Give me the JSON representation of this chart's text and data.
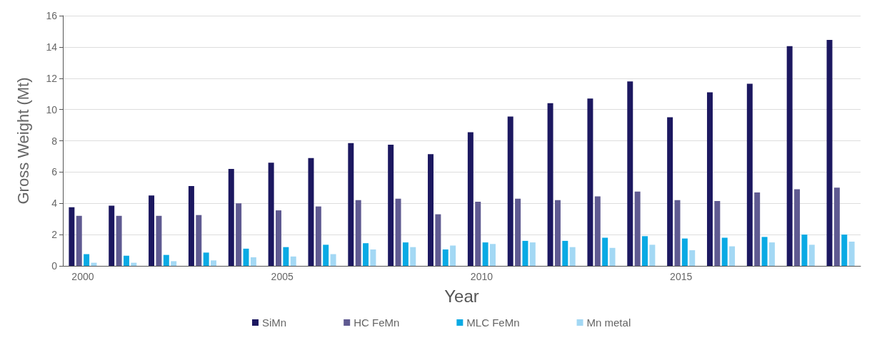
{
  "chart_data": {
    "type": "bar",
    "xlabel": "Year",
    "ylabel": "Gross Weight (Mt)",
    "categories": [
      "2000",
      null,
      null,
      null,
      null,
      "2005",
      null,
      null,
      null,
      null,
      "2010",
      null,
      null,
      null,
      null,
      "2015",
      null,
      null,
      null,
      null
    ],
    "series": [
      {
        "name": "SiMn",
        "color": "#1c1860",
        "values": [
          3.75,
          3.85,
          4.5,
          5.1,
          6.2,
          6.6,
          6.9,
          7.85,
          7.75,
          7.15,
          8.55,
          9.55,
          10.4,
          10.7,
          11.8,
          9.5,
          11.1,
          11.65,
          14.05,
          14.45
        ]
      },
      {
        "name": "HC FeMn",
        "color": "#5f5a91",
        "values": [
          3.2,
          3.2,
          3.2,
          3.25,
          4.0,
          3.55,
          3.8,
          4.2,
          4.3,
          3.3,
          4.1,
          4.3,
          4.2,
          4.45,
          4.75,
          4.2,
          4.15,
          4.7,
          4.9,
          5.0
        ]
      },
      {
        "name": "MLC FeMn",
        "color": "#0aaae4",
        "values": [
          0.75,
          0.65,
          0.7,
          0.85,
          1.1,
          1.2,
          1.35,
          1.45,
          1.5,
          1.05,
          1.5,
          1.6,
          1.6,
          1.8,
          1.9,
          1.75,
          1.8,
          1.85,
          2.0,
          2.0
        ]
      },
      {
        "name": "Mn metal",
        "color": "#a3d8f4",
        "values": [
          0.2,
          0.2,
          0.3,
          0.35,
          0.55,
          0.6,
          0.75,
          1.05,
          1.2,
          1.3,
          1.4,
          1.5,
          1.2,
          1.15,
          1.35,
          1.0,
          1.25,
          1.5,
          1.35,
          1.55
        ]
      }
    ],
    "ylim": [
      0,
      16
    ],
    "yticks": [
      0,
      2,
      4,
      6,
      8,
      10,
      12,
      14,
      16
    ],
    "grid": "y",
    "legend": "bottom"
  }
}
